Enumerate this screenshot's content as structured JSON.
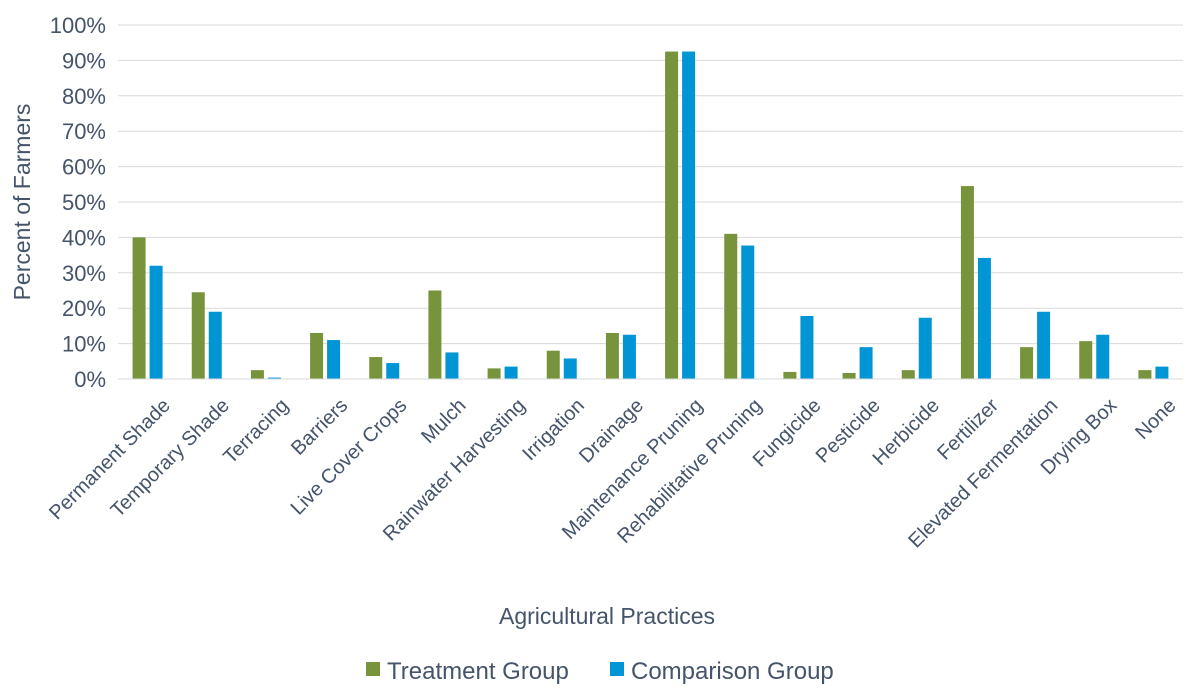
{
  "chart_data": {
    "type": "bar",
    "title": "",
    "xlabel": "Agricultural Practices",
    "ylabel": "Percent of Farmers",
    "ylim": [
      0,
      100
    ],
    "y_ticks": [
      "0%",
      "10%",
      "20%",
      "30%",
      "40%",
      "50%",
      "60%",
      "70%",
      "80%",
      "90%",
      "100%"
    ],
    "y_tick_values": [
      0,
      10,
      20,
      30,
      40,
      50,
      60,
      70,
      80,
      90,
      100
    ],
    "grid": true,
    "legend_position": "bottom",
    "categories": [
      "Permanent Shade",
      "Temporary Shade",
      "Terracing",
      "Barriers",
      "Live Cover Crops",
      "Mulch",
      "Rainwater Harvesting",
      "Irrigation",
      "Drainage",
      "Maintenance Pruning",
      "Rehabilitative Pruning",
      "Fungicide",
      "Pesticide",
      "Herbicide",
      "Fertilizer",
      "Elevated Fermentation",
      "Drying Box",
      "None"
    ],
    "series": [
      {
        "name": "Treatment Group",
        "color": "#77933c",
        "values": [
          40,
          24.5,
          2.5,
          13,
          6.2,
          25,
          3,
          8,
          13,
          92.5,
          41,
          2,
          1.7,
          2.5,
          54.5,
          9,
          10.7,
          2.5
        ]
      },
      {
        "name": "Comparison Group",
        "color": "#0096d6",
        "values": [
          32,
          19,
          0.4,
          11,
          4.5,
          7.5,
          3.5,
          5.8,
          12.5,
          92.5,
          37.7,
          17.8,
          9,
          17.3,
          34.2,
          19,
          12.5,
          3.5
        ]
      }
    ]
  }
}
